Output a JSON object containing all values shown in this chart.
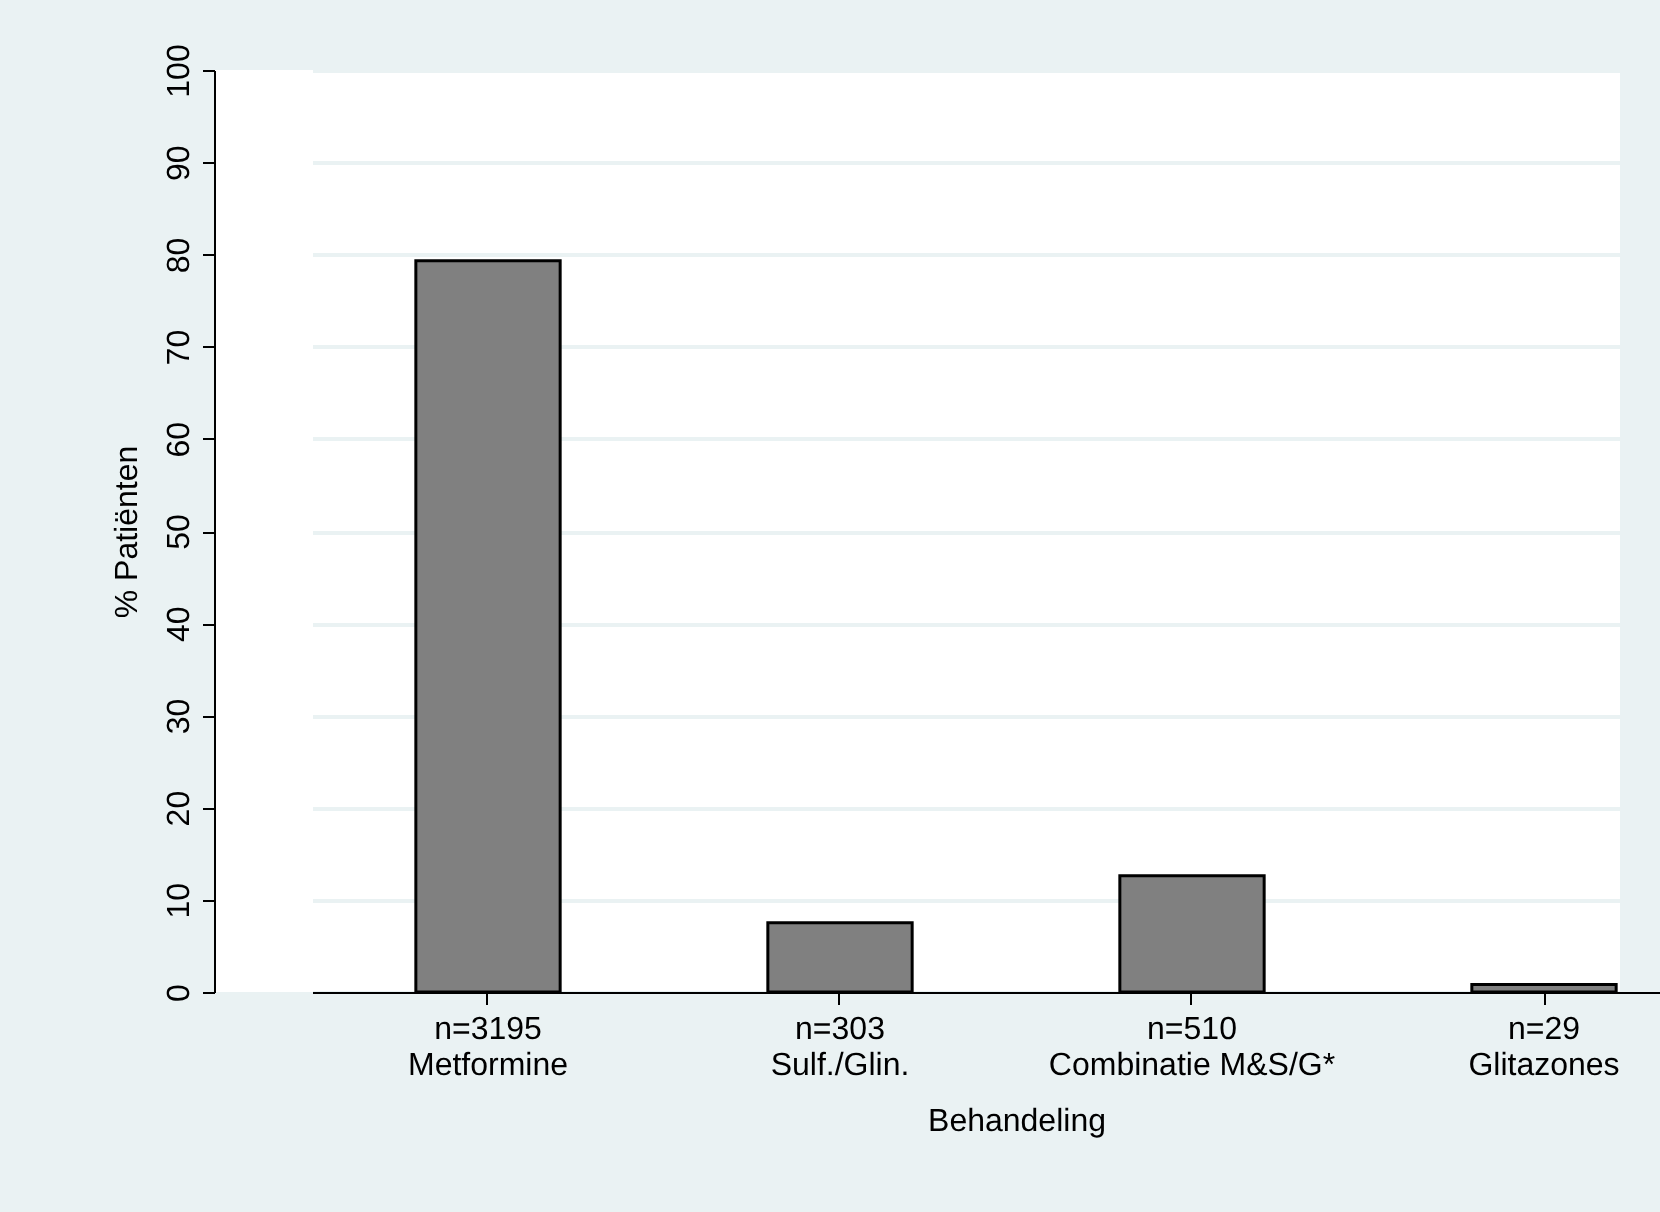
{
  "chart_data": {
    "type": "bar",
    "xlabel": "Behandeling",
    "ylabel": "% Patiënten",
    "categories": [
      "n=3195\nMetformine",
      "n=303\nSulf./Glin.",
      "n=510\nCombinatie M&S/G*",
      "n=29\nGlitazones"
    ],
    "values": [
      79.3,
      7.5,
      12.6,
      0.8
    ],
    "color": "#808080",
    "ylim": [
      0,
      100
    ],
    "yticks": [
      0,
      10,
      20,
      30,
      40,
      50,
      60,
      70,
      80,
      90,
      100
    ],
    "grid": "y"
  }
}
